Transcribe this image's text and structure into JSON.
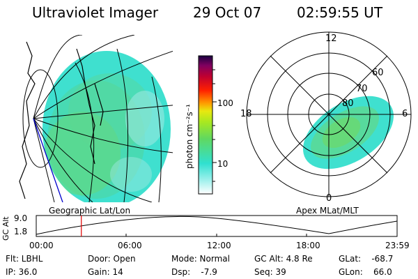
{
  "header": {
    "title": "Ultraviolet Imager",
    "date": "29 Oct 07",
    "time": "02:59:55 UT"
  },
  "geo_map": {
    "label": "Geographic Lat/Lon"
  },
  "colorbar": {
    "unit_label": "photon cm⁻²s⁻¹",
    "ticks": [
      "100",
      "10"
    ],
    "colors": [
      "#ffffff",
      "#30e8d8",
      "#60d860",
      "#a8e820",
      "#e8e810",
      "#ff9800",
      "#ff2000",
      "#c00030",
      "#800060",
      "#1a0040"
    ]
  },
  "polar_plot": {
    "label": "Apex MLat/MLT",
    "mlt_labels": [
      "12",
      "18",
      "6",
      "0"
    ],
    "lat_labels": [
      "60",
      "70",
      "80"
    ]
  },
  "altitude_strip": {
    "ylabel": "GC Alt",
    "yticks": [
      "9.0",
      "1.8"
    ],
    "xticks": [
      "00:00",
      "06:00",
      "12:00",
      "18:00",
      "23:59"
    ],
    "marker_time_hours": 3.0,
    "marker_color": "#e00000"
  },
  "status": {
    "flt": "Flt: LBHL",
    "ip": "IP: 36.0",
    "door": "Door: Open",
    "gain": "Gain: 14",
    "mode": "Mode: Normal",
    "dsp": "Dsp:    -7.9",
    "gc_alt": "GC Alt: 4.8 Re",
    "seq": "Seq: 39",
    "glat": "GLat:    -68.7",
    "glon": "GLon:    66.0"
  }
}
